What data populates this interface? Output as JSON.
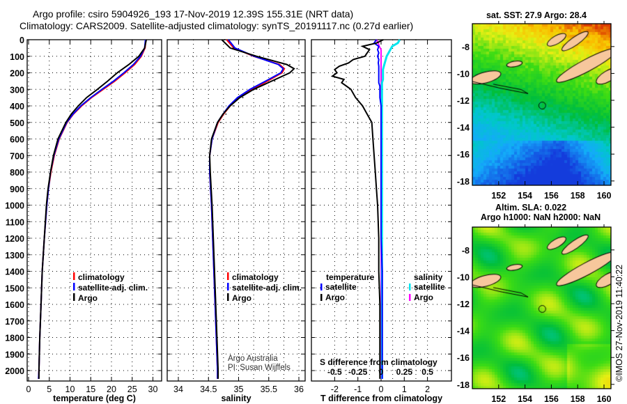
{
  "header": {
    "title_line1": "Argo profile: csiro 5904926_193 17-Nov-2019 12.39S 155.31E (NRT data)",
    "title_line2": "Climatology: CARS2009. Satellite-adjusted climatology: synTS_20191117.nc (0.27d earlier)"
  },
  "credits": {
    "line1": "Argo Australia",
    "line2": "PI: Susan Wijffels",
    "copyright": "©IMOS 27-Nov-2019 11:40:22"
  },
  "colors": {
    "climatology": "#ff0000",
    "satellite": "#0000ff",
    "argo": "#000000",
    "salinity_satellite": "#00e5ee",
    "salinity_argo": "#ff00ff",
    "land": "#f7c79c"
  },
  "chart_data": [
    {
      "type": "line",
      "id": "temperature",
      "xlabel": "temperature (deg C)",
      "ylabel": "depth",
      "xlim": [
        -0.5,
        32
      ],
      "ylim": [
        2065,
        0
      ],
      "xticks": [
        "0",
        "5",
        "10",
        "15",
        "20",
        "25",
        "30"
      ],
      "yticks": [
        "0",
        "100",
        "200",
        "300",
        "400",
        "500",
        "600",
        "700",
        "800",
        "900",
        "1000",
        "1100",
        "1200",
        "1300",
        "1400",
        "1500",
        "1600",
        "1700",
        "1800",
        "1900",
        "2000"
      ],
      "grid": true,
      "legend": [
        "climatology",
        "satellite-adj. clim.",
        "Argo"
      ],
      "depth": [
        0,
        50,
        100,
        150,
        200,
        250,
        300,
        350,
        400,
        450,
        500,
        600,
        700,
        800,
        900,
        1000,
        1200,
        1400,
        1600,
        1800,
        2000,
        2050
      ],
      "series": [
        {
          "name": "climatology",
          "values": [
            28.3,
            28.1,
            27.2,
            25.6,
            23.3,
            20.8,
            18.0,
            15.2,
            12.8,
            10.8,
            9.3,
            7.4,
            6.2,
            5.4,
            4.8,
            4.4,
            3.8,
            3.3,
            3.0,
            2.7,
            2.5,
            2.4
          ]
        },
        {
          "name": "satellite-adj. clim.",
          "values": [
            28.2,
            28.0,
            27.0,
            25.3,
            23.0,
            20.5,
            17.7,
            15.0,
            12.6,
            10.7,
            9.2,
            7.3,
            6.1,
            5.3,
            4.8,
            4.4,
            3.8,
            3.3,
            3.0,
            2.7,
            2.5,
            2.4
          ]
        },
        {
          "name": "Argo",
          "values": [
            28.4,
            28.0,
            26.6,
            24.2,
            21.4,
            19.1,
            16.6,
            14.0,
            12.0,
            10.3,
            9.0,
            7.1,
            6.0,
            5.3,
            4.7,
            4.3,
            3.8,
            3.3,
            3.0,
            2.7,
            2.5,
            2.5
          ]
        }
      ]
    },
    {
      "type": "line",
      "id": "salinity",
      "xlabel": "salinity",
      "xlim": [
        33.8,
        36.1
      ],
      "xticks": [
        "34",
        "34.5",
        "35",
        "35.5",
        "36"
      ],
      "grid": true,
      "legend": [
        "climatology",
        "satellite-adj. clim.",
        "Argo"
      ],
      "depth": [
        0,
        50,
        100,
        150,
        175,
        200,
        250,
        300,
        350,
        400,
        450,
        500,
        600,
        700,
        800,
        1000,
        1200,
        1500,
        1800,
        2000,
        2050
      ],
      "series": [
        {
          "name": "climatology",
          "values": [
            34.8,
            34.92,
            35.25,
            35.68,
            35.76,
            35.72,
            35.48,
            35.22,
            35.0,
            34.86,
            34.75,
            34.66,
            34.56,
            34.52,
            34.52,
            34.55,
            34.57,
            34.6,
            34.63,
            34.65,
            34.65
          ]
        },
        {
          "name": "satellite-adj. clim.",
          "values": [
            34.83,
            34.94,
            35.26,
            35.66,
            35.74,
            35.7,
            35.45,
            35.19,
            34.98,
            34.84,
            34.74,
            34.65,
            34.56,
            34.52,
            34.52,
            34.55,
            34.57,
            34.6,
            34.63,
            34.65,
            34.65
          ]
        },
        {
          "name": "Argo",
          "values": [
            34.72,
            34.86,
            35.3,
            35.8,
            35.92,
            35.85,
            35.55,
            35.25,
            35.02,
            34.86,
            34.74,
            34.65,
            34.55,
            34.52,
            34.53,
            34.56,
            34.58,
            34.61,
            34.64,
            34.66,
            34.66
          ]
        }
      ]
    },
    {
      "type": "line",
      "id": "difference",
      "xlabel": "T difference from climatology",
      "xlabel2": "S difference from climatology",
      "xlim": [
        -3,
        3
      ],
      "xticks": [
        "-2",
        "-1",
        "0",
        "1",
        "2"
      ],
      "xticks2": [
        "-0.5",
        "-0.25",
        "0",
        "0.25",
        "0.5"
      ],
      "grid": true,
      "legend_temperature": {
        "title": "temperature",
        "items": [
          "satellite",
          "Argo"
        ]
      },
      "legend_salinity": {
        "title": "salinity",
        "items": [
          "satellite",
          "Argo"
        ]
      },
      "depth": [
        0,
        20,
        40,
        60,
        80,
        100,
        120,
        140,
        160,
        180,
        200,
        220,
        240,
        260,
        280,
        300,
        350,
        400,
        450,
        500,
        600,
        700,
        800,
        900,
        1000,
        1200,
        1400,
        1600,
        1800,
        2000,
        2050
      ],
      "series": [
        {
          "name": "T satellite",
          "values": [
            -0.2,
            -0.3,
            -0.1,
            -0.15,
            -0.1,
            -0.15,
            -0.1,
            -0.12,
            -0.1,
            -0.1,
            -0.1,
            -0.1,
            -0.1,
            -0.1,
            -0.05,
            -0.05,
            -0.05,
            0,
            0,
            0,
            0,
            0,
            0,
            0,
            0,
            0,
            0.05,
            0.05,
            0.05,
            0.05,
            0.05
          ]
        },
        {
          "name": "T Argo",
          "values": [
            0.1,
            -0.2,
            -0.8,
            -0.5,
            -0.6,
            -0.7,
            -1.2,
            -1.4,
            -1.8,
            -2.0,
            -1.9,
            -2.1,
            -1.6,
            -1.7,
            -1.5,
            -1.3,
            -1.1,
            -0.8,
            -0.6,
            -0.4,
            -0.35,
            -0.3,
            -0.25,
            -0.2,
            -0.15,
            -0.1,
            -0.1,
            -0.05,
            -0.05,
            -0.05,
            -0.05
          ]
        },
        {
          "name": "S satellite",
          "values": [
            0.2,
            0.18,
            0.12,
            0.1,
            0.08,
            0.06,
            0.05,
            0.04,
            0.03,
            0.02,
            0.02,
            0.02,
            0.02,
            0.01,
            0.01,
            0.01,
            0.01,
            0.01,
            0.01,
            0.01,
            0.01,
            0.01,
            0.01,
            0.01,
            0.01,
            0.01,
            0.01,
            0.01,
            0.01,
            0.01,
            0.01
          ]
        },
        {
          "name": "S Argo",
          "values": [
            -0.05,
            -0.03,
            -0.02,
            0,
            0,
            0,
            0,
            0,
            0,
            0,
            0,
            0,
            0,
            0,
            0,
            0,
            0,
            0,
            0,
            0,
            0,
            0,
            0,
            0,
            0,
            0,
            0,
            0,
            0,
            0,
            0
          ]
        }
      ]
    },
    {
      "type": "heatmap",
      "id": "sst-map",
      "title": "sat. SST: 27.9 Argo: 28.4",
      "xlim": [
        150,
        160.5
      ],
      "ylim": [
        -18.5,
        -6.3
      ],
      "xticks": [
        "152",
        "154",
        "156",
        "158",
        "160"
      ],
      "yticks": [
        "-8",
        "-10",
        "-12",
        "-14",
        "-16",
        "-18"
      ],
      "argo_position": {
        "lon": 155.31,
        "lat": -12.39
      }
    },
    {
      "type": "heatmap",
      "id": "sla-map",
      "title": "Altim. SLA: 0.022",
      "subtitle": "Argo h1000: NaN h2000: NaN",
      "xlim": [
        150,
        160.5
      ],
      "ylim": [
        -18.5,
        -6.3
      ],
      "xticks": [
        "152",
        "154",
        "156",
        "158",
        "160"
      ],
      "yticks": [
        "-8",
        "-10",
        "-12",
        "-14",
        "-16",
        "-18"
      ],
      "argo_position": {
        "lon": 155.31,
        "lat": -12.39
      }
    }
  ]
}
